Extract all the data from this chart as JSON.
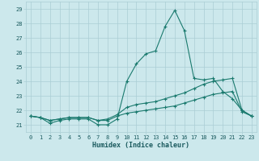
{
  "xlabel": "Humidex (Indice chaleur)",
  "xlim": [
    -0.5,
    23.5
  ],
  "ylim": [
    20.5,
    29.5
  ],
  "yticks": [
    21,
    22,
    23,
    24,
    25,
    26,
    27,
    28,
    29
  ],
  "xticks": [
    0,
    1,
    2,
    3,
    4,
    5,
    6,
    7,
    8,
    9,
    10,
    11,
    12,
    13,
    14,
    15,
    16,
    17,
    18,
    19,
    20,
    21,
    22,
    23
  ],
  "bg_color": "#cce8ec",
  "line_color": "#1a7a6e",
  "grid_color": "#aacdd4",
  "line1": [
    21.6,
    21.5,
    21.1,
    21.3,
    21.4,
    21.4,
    21.4,
    21.0,
    21.0,
    21.4,
    24.0,
    25.2,
    25.9,
    26.1,
    27.8,
    28.9,
    27.5,
    24.2,
    24.1,
    24.2,
    23.3,
    22.8,
    22.0,
    21.6
  ],
  "line2": [
    21.6,
    21.5,
    21.3,
    21.4,
    21.5,
    21.5,
    21.5,
    21.3,
    21.4,
    21.7,
    22.2,
    22.4,
    22.5,
    22.6,
    22.8,
    23.0,
    23.2,
    23.5,
    23.8,
    24.0,
    24.1,
    24.2,
    22.0,
    21.6
  ],
  "line3": [
    21.6,
    21.5,
    21.3,
    21.4,
    21.5,
    21.5,
    21.5,
    21.3,
    21.3,
    21.6,
    21.8,
    21.9,
    22.0,
    22.1,
    22.2,
    22.3,
    22.5,
    22.7,
    22.9,
    23.1,
    23.2,
    23.3,
    21.9,
    21.6
  ]
}
